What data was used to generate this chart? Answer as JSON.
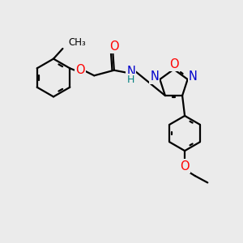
{
  "bg_color": "#ebebeb",
  "bond_color": "#000000",
  "atom_colors": {
    "O": "#ff0000",
    "N": "#0000cc",
    "H": "#008080",
    "C": "#000000"
  },
  "lw": 1.6,
  "fs": 10.5,
  "fs_small": 9.0
}
